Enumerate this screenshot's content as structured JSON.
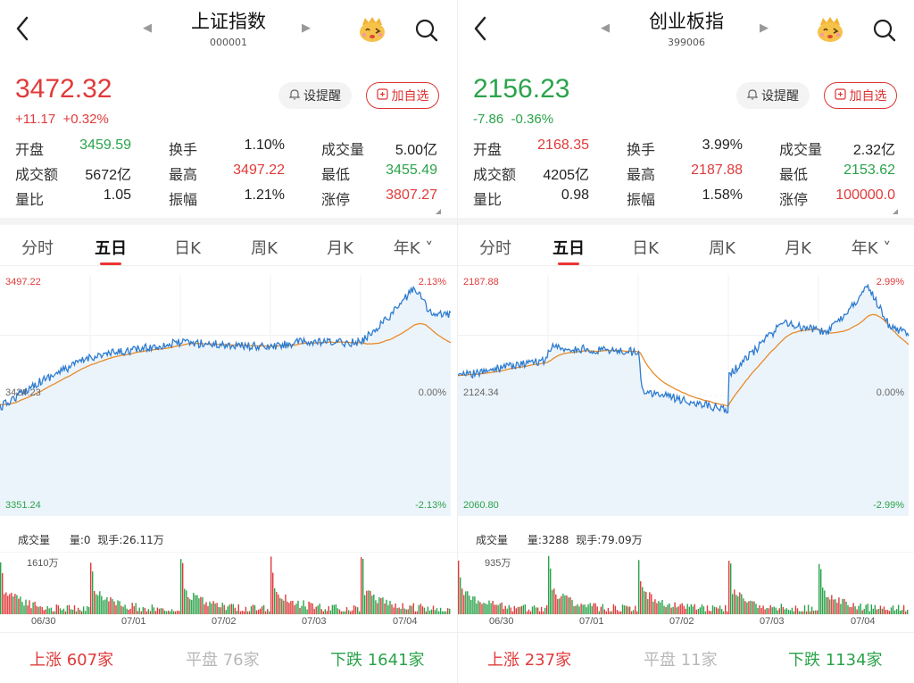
{
  "colors": {
    "up": "#e03a3a",
    "down": "#2aa34a",
    "line": "#2f7ccf",
    "avg": "#e78a2a",
    "muted": "#b8b8b8"
  },
  "panels": [
    {
      "title": "上证指数",
      "code": "000001",
      "price": "3472.32",
      "change": "+11.17",
      "change_pct": "+0.32%",
      "direction": "up",
      "remind_label": "设提醒",
      "add_label": "加自选",
      "stats": [
        [
          {
            "label": "开盘",
            "value": "3459.59",
            "color": "down"
          },
          {
            "label": "换手",
            "value": "1.10%",
            "color": "neutral"
          },
          {
            "label": "成交量",
            "value": "5.00亿",
            "color": "neutral"
          }
        ],
        [
          {
            "label": "成交额",
            "value": "5672亿",
            "color": "neutral"
          },
          {
            "label": "最高",
            "value": "3497.22",
            "color": "up"
          },
          {
            "label": "最低",
            "value": "3455.49",
            "color": "down"
          }
        ],
        [
          {
            "label": "量比",
            "value": "1.05",
            "color": "neutral"
          },
          {
            "label": "振幅",
            "value": "1.21%",
            "color": "neutral"
          },
          {
            "label": "涨停",
            "value": "3807.27",
            "color": "up"
          }
        ]
      ],
      "tabs": [
        "分时",
        "五日",
        "日K",
        "周K",
        "月K",
        "年K"
      ],
      "active_tab": 1,
      "chart": {
        "high": "3497.22",
        "mid": "3424.23",
        "low": "3351.24",
        "high_pct": "2.13%",
        "mid_pct": "0.00%",
        "low_pct": "-2.13%"
      },
      "volume": {
        "label": "成交量",
        "amount": "量:0",
        "turnover": "现手:26.11万",
        "max": "1610万"
      },
      "dates": [
        "06/30",
        "07/01",
        "07/02",
        "07/03",
        "07/04"
      ],
      "footer": {
        "up_label": "上涨",
        "up_count": "607家",
        "flat_label": "平盘",
        "flat_count": "76家",
        "down_label": "下跌",
        "down_count": "1641家"
      }
    },
    {
      "title": "创业板指",
      "code": "399006",
      "price": "2156.23",
      "change": "-7.86",
      "change_pct": "-0.36%",
      "direction": "down",
      "remind_label": "设提醒",
      "add_label": "加自选",
      "stats": [
        [
          {
            "label": "开盘",
            "value": "2168.35",
            "color": "up"
          },
          {
            "label": "换手",
            "value": "3.99%",
            "color": "neutral"
          },
          {
            "label": "成交量",
            "value": "2.32亿",
            "color": "neutral"
          }
        ],
        [
          {
            "label": "成交额",
            "value": "4205亿",
            "color": "neutral"
          },
          {
            "label": "最高",
            "value": "2187.88",
            "color": "up"
          },
          {
            "label": "最低",
            "value": "2153.62",
            "color": "down"
          }
        ],
        [
          {
            "label": "量比",
            "value": "0.98",
            "color": "neutral"
          },
          {
            "label": "振幅",
            "value": "1.58%",
            "color": "neutral"
          },
          {
            "label": "涨停",
            "value": "100000.0",
            "color": "up"
          }
        ]
      ],
      "tabs": [
        "分时",
        "五日",
        "日K",
        "周K",
        "月K",
        "年K"
      ],
      "active_tab": 1,
      "chart": {
        "high": "2187.88",
        "mid": "2124.34",
        "low": "2060.80",
        "high_pct": "2.99%",
        "mid_pct": "0.00%",
        "low_pct": "-2.99%"
      },
      "volume": {
        "label": "成交量",
        "amount": "量:3288",
        "turnover": "现手:79.09万",
        "max": "935万"
      },
      "dates": [
        "06/30",
        "07/01",
        "07/02",
        "07/03",
        "07/04"
      ],
      "footer": {
        "up_label": "上涨",
        "up_count": "237家",
        "flat_label": "平盘",
        "flat_count": "11家",
        "down_label": "下跌",
        "down_count": "1134家"
      }
    }
  ]
}
